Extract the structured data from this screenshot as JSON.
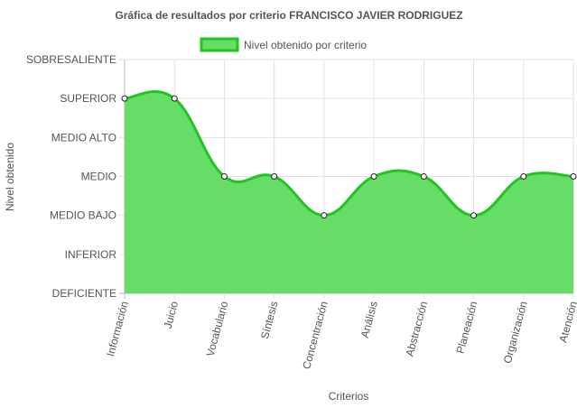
{
  "chart_data": {
    "type": "line",
    "title": "Gráfica de resultados por criterio FRANCISCO JAVIER RODRIGUEZ",
    "xlabel": "Criterios",
    "ylabel": "Nivel obtenido",
    "y_levels": [
      "DEFICIENTE",
      "INFERIOR",
      "MEDIO BAJO",
      "MEDIO",
      "MEDIO ALTO",
      "SUPERIOR",
      "SOBRESALIENTE"
    ],
    "ylim": [
      0,
      6
    ],
    "categories": [
      "Información",
      "Juicio",
      "Vocabulario",
      "Síntesis",
      "Concentración",
      "Análisis",
      "Abstracción",
      "Planeación",
      "Organización",
      "Atención"
    ],
    "series": [
      {
        "name": "Nivel obtenido por criterio",
        "values": [
          5,
          5,
          3,
          3,
          2,
          3,
          3,
          2,
          3,
          3
        ],
        "color": "#22c422",
        "fill": "#66dd66"
      }
    ],
    "legend_position": "top",
    "grid": true,
    "area_fill": true
  }
}
